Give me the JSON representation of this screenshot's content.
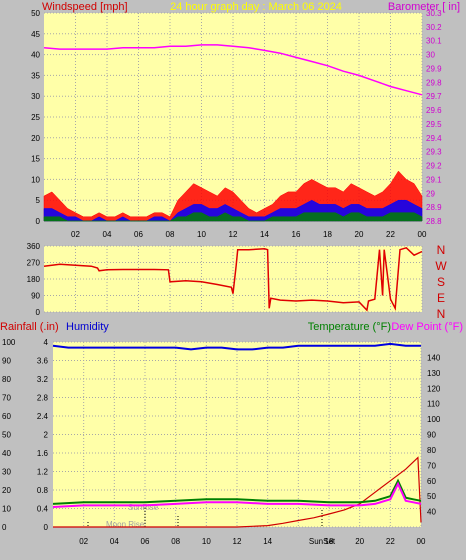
{
  "colors": {
    "background": "#c0c0c0",
    "plot_bg": "#ffffa8",
    "grid": "#a8a8a8",
    "wind": "#ff0000",
    "gust_mid": "#0000ff",
    "gust_low": "#008000",
    "barometer": "#ff00ff",
    "direction": "#e00000",
    "rain": "#d00000",
    "humidity": "#0000e0",
    "temperature": "#008000",
    "dewpoint": "#ff00ff",
    "header_title": "#ffff00",
    "tick_text": "#000000",
    "compass_text": "#d00000"
  },
  "top_panel": {
    "left_label": "Windspeed [mph]",
    "title": "24 hour graph day : March 06 2024",
    "right_label": "Barometer [ in]"
  },
  "dir_panel": {
    "compass": [
      "N",
      "W",
      "S",
      "E",
      "N"
    ]
  },
  "bottom_panel": {
    "left_label_1": "Rainfall (.in)",
    "left_label_2": "Humidity",
    "right_label_1": "Temperature (°F)",
    "right_label_2": "Dew Point (°F)",
    "markers": {
      "sunrise": "SunRise",
      "moonrise": "Moon Rise",
      "sunset": "SunSet"
    }
  },
  "chart_data": [
    {
      "type": "line",
      "title": "24 hour graph day : March 06 2024",
      "xlabel": "",
      "ylabel": "Windspeed [mph]",
      "y2label": "Barometer [ in]",
      "x_ticks": [
        "02",
        "04",
        "06",
        "08",
        "10",
        "12",
        "14",
        "16",
        "18",
        "20",
        "22",
        "00"
      ],
      "ylim": [
        0,
        50
      ],
      "y_ticks": [
        "0",
        "5",
        "10",
        "15",
        "20",
        "25",
        "30",
        "35",
        "40",
        "45",
        "50"
      ],
      "y2lim": [
        28.8,
        30.3
      ],
      "y2_ticks": [
        "28.8",
        "28.9",
        "29",
        "29.1",
        "29.2",
        "29.3",
        "29.4",
        "29.5",
        "29.6",
        "29.7",
        "29.8",
        "29.9",
        "30",
        "30.1",
        "30.2",
        "30.3"
      ],
      "series": [
        {
          "name": "Barometer",
          "axis": "right",
          "x": [
            0,
            1,
            2,
            3,
            4,
            5,
            6,
            7,
            8,
            9,
            10,
            11,
            12,
            13,
            14,
            15,
            16,
            17,
            18,
            19,
            20,
            21,
            22,
            23,
            24
          ],
          "values": [
            30.05,
            30.04,
            30.04,
            30.04,
            30.04,
            30.05,
            30.05,
            30.05,
            30.06,
            30.06,
            30.07,
            30.07,
            30.06,
            30.05,
            30.03,
            30.01,
            29.98,
            29.95,
            29.92,
            29.88,
            29.85,
            29.81,
            29.77,
            29.74,
            29.71
          ]
        },
        {
          "name": "Wind Gust",
          "axis": "left",
          "x": [
            0,
            0.5,
            1,
            1.5,
            2,
            2.5,
            3,
            3.5,
            4,
            4.5,
            5,
            5.5,
            6,
            6.5,
            7,
            7.5,
            8,
            8.5,
            9,
            9.5,
            10,
            10.5,
            11,
            11.5,
            12,
            12.5,
            13,
            13.5,
            14,
            14.5,
            15,
            15.5,
            16,
            16.5,
            17,
            17.5,
            18,
            18.5,
            19,
            19.5,
            20,
            20.5,
            21,
            21.5,
            22,
            22.5,
            23,
            23.5,
            24
          ],
          "values": [
            6,
            7,
            5,
            3,
            2,
            1,
            1,
            2,
            1,
            1,
            2,
            1,
            1,
            1,
            2,
            2,
            1,
            5,
            7,
            9,
            8,
            7,
            6,
            8,
            7,
            5,
            3,
            2,
            3,
            4,
            6,
            7,
            7,
            9,
            10,
            9,
            8,
            8,
            7,
            9,
            8,
            7,
            6,
            7,
            9,
            12,
            10,
            9,
            6
          ]
        },
        {
          "name": "Average Wind",
          "axis": "left",
          "x": [
            0,
            0.5,
            1,
            1.5,
            2,
            2.5,
            3,
            3.5,
            4,
            4.5,
            5,
            5.5,
            6,
            6.5,
            7,
            7.5,
            8,
            8.5,
            9,
            9.5,
            10,
            10.5,
            11,
            11.5,
            12,
            12.5,
            13,
            13.5,
            14,
            14.5,
            15,
            15.5,
            16,
            16.5,
            17,
            17.5,
            18,
            18.5,
            19,
            19.5,
            20,
            20.5,
            21,
            21.5,
            22,
            22.5,
            23,
            23.5,
            24
          ],
          "values": [
            3,
            3,
            2,
            1,
            1,
            0,
            0,
            1,
            0,
            0,
            1,
            0,
            0,
            0,
            1,
            1,
            0,
            2,
            3,
            4,
            4,
            3,
            3,
            4,
            3,
            2,
            1,
            1,
            1,
            2,
            3,
            3,
            3,
            4,
            5,
            4,
            4,
            4,
            3,
            4,
            4,
            3,
            3,
            3,
            4,
            5,
            5,
            4,
            3
          ]
        },
        {
          "name": "Wind Low",
          "axis": "left",
          "x": [
            0,
            0.5,
            1,
            1.5,
            2,
            2.5,
            3,
            3.5,
            4,
            4.5,
            5,
            5.5,
            6,
            6.5,
            7,
            7.5,
            8,
            8.5,
            9,
            9.5,
            10,
            10.5,
            11,
            11.5,
            12,
            12.5,
            13,
            13.5,
            14,
            14.5,
            15,
            15.5,
            16,
            16.5,
            17,
            17.5,
            18,
            18.5,
            19,
            19.5,
            20,
            20.5,
            21,
            21.5,
            22,
            22.5,
            23,
            23.5,
            24
          ],
          "values": [
            1,
            1,
            1,
            0,
            0,
            0,
            0,
            0,
            0,
            0,
            0,
            0,
            0,
            0,
            0,
            0,
            0,
            1,
            1,
            2,
            2,
            1,
            1,
            2,
            1,
            1,
            0,
            0,
            0,
            1,
            1,
            1,
            1,
            2,
            2,
            2,
            2,
            2,
            1,
            2,
            2,
            1,
            1,
            1,
            2,
            2,
            2,
            2,
            1
          ]
        }
      ]
    },
    {
      "type": "line",
      "title": "",
      "xlabel": "",
      "ylabel": "",
      "ylim": [
        0,
        360
      ],
      "y_ticks": [
        "0",
        "90",
        "180",
        "270",
        "360"
      ],
      "series": [
        {
          "name": "Wind Direction",
          "x": [
            0,
            1,
            2,
            3,
            3.4,
            3.5,
            4,
            5,
            6,
            7,
            7.9,
            8,
            9,
            10,
            11,
            11.9,
            12,
            12.2,
            12.3,
            13,
            14,
            14.2,
            14.3,
            14.4,
            15,
            16,
            17,
            18,
            19,
            20,
            20.5,
            20.6,
            21,
            21.3,
            21.5,
            21.6,
            22,
            22.3,
            22.6,
            23,
            23.5,
            24
          ],
          "values": [
            250,
            260,
            255,
            250,
            240,
            225,
            230,
            232,
            232,
            232,
            230,
            165,
            170,
            165,
            150,
            135,
            100,
            250,
            340,
            340,
            345,
            340,
            20,
            75,
            65,
            60,
            65,
            60,
            50,
            55,
            10,
            60,
            70,
            340,
            90,
            340,
            70,
            20,
            340,
            350,
            310,
            330
          ]
        }
      ]
    },
    {
      "type": "line",
      "title": "",
      "xlabel": "",
      "ylabel": "Rainfall (.in)",
      "ylim": [
        0,
        4
      ],
      "y_ticks": [
        "0",
        "0.4",
        "0.8",
        "1.2",
        "1.6",
        "2",
        "2.4",
        "2.8",
        "3.2",
        "3.6",
        "4"
      ],
      "y_humidity_ticks": [
        "0",
        "10",
        "20",
        "30",
        "40",
        "50",
        "60",
        "70",
        "80",
        "90",
        "100"
      ],
      "y2label": "Temperature (°F)",
      "y2lim": [
        30,
        150
      ],
      "y2_ticks": [
        "40",
        "50",
        "60",
        "70",
        "80",
        "90",
        "100",
        "110",
        "120",
        "130",
        "140"
      ],
      "series": [
        {
          "name": "Rainfall",
          "axis": "left",
          "x": [
            0,
            12,
            14,
            15,
            16,
            17,
            18,
            19,
            20,
            21,
            22,
            23,
            23.8,
            24
          ],
          "values": [
            0,
            0,
            0.03,
            0.08,
            0.14,
            0.2,
            0.28,
            0.37,
            0.5,
            0.75,
            1.0,
            1.25,
            1.5,
            0.1
          ]
        },
        {
          "name": "Humidity",
          "axis": "humidity",
          "x": [
            0,
            1,
            2,
            3,
            4,
            5,
            6,
            7,
            8,
            9,
            10,
            11,
            12,
            13,
            14,
            15,
            16,
            17,
            18,
            19,
            20,
            21,
            22,
            23,
            24
          ],
          "values": [
            98,
            97,
            97,
            97,
            97,
            97,
            97,
            97,
            97,
            96,
            97,
            97,
            96,
            96,
            97,
            97,
            98,
            98,
            98,
            98,
            98,
            98,
            99,
            98,
            98
          ]
        },
        {
          "name": "Temperature",
          "axis": "right",
          "x": [
            0,
            2,
            4,
            6,
            8,
            10,
            12,
            14,
            16,
            18,
            20,
            21,
            22,
            22.5,
            23,
            23.5,
            24
          ],
          "values": [
            45,
            46,
            46,
            46,
            47,
            48,
            48,
            47,
            47,
            46,
            46,
            47,
            50,
            60,
            49,
            48,
            47
          ]
        },
        {
          "name": "Dew Point",
          "axis": "right",
          "x": [
            0,
            2,
            4,
            6,
            8,
            10,
            12,
            14,
            16,
            18,
            20,
            21,
            22,
            22.5,
            23,
            23.5,
            24
          ],
          "values": [
            43,
            44,
            44,
            44,
            45,
            46,
            46,
            45,
            45,
            44,
            44,
            45,
            48,
            58,
            47,
            46,
            45
          ]
        }
      ]
    }
  ]
}
